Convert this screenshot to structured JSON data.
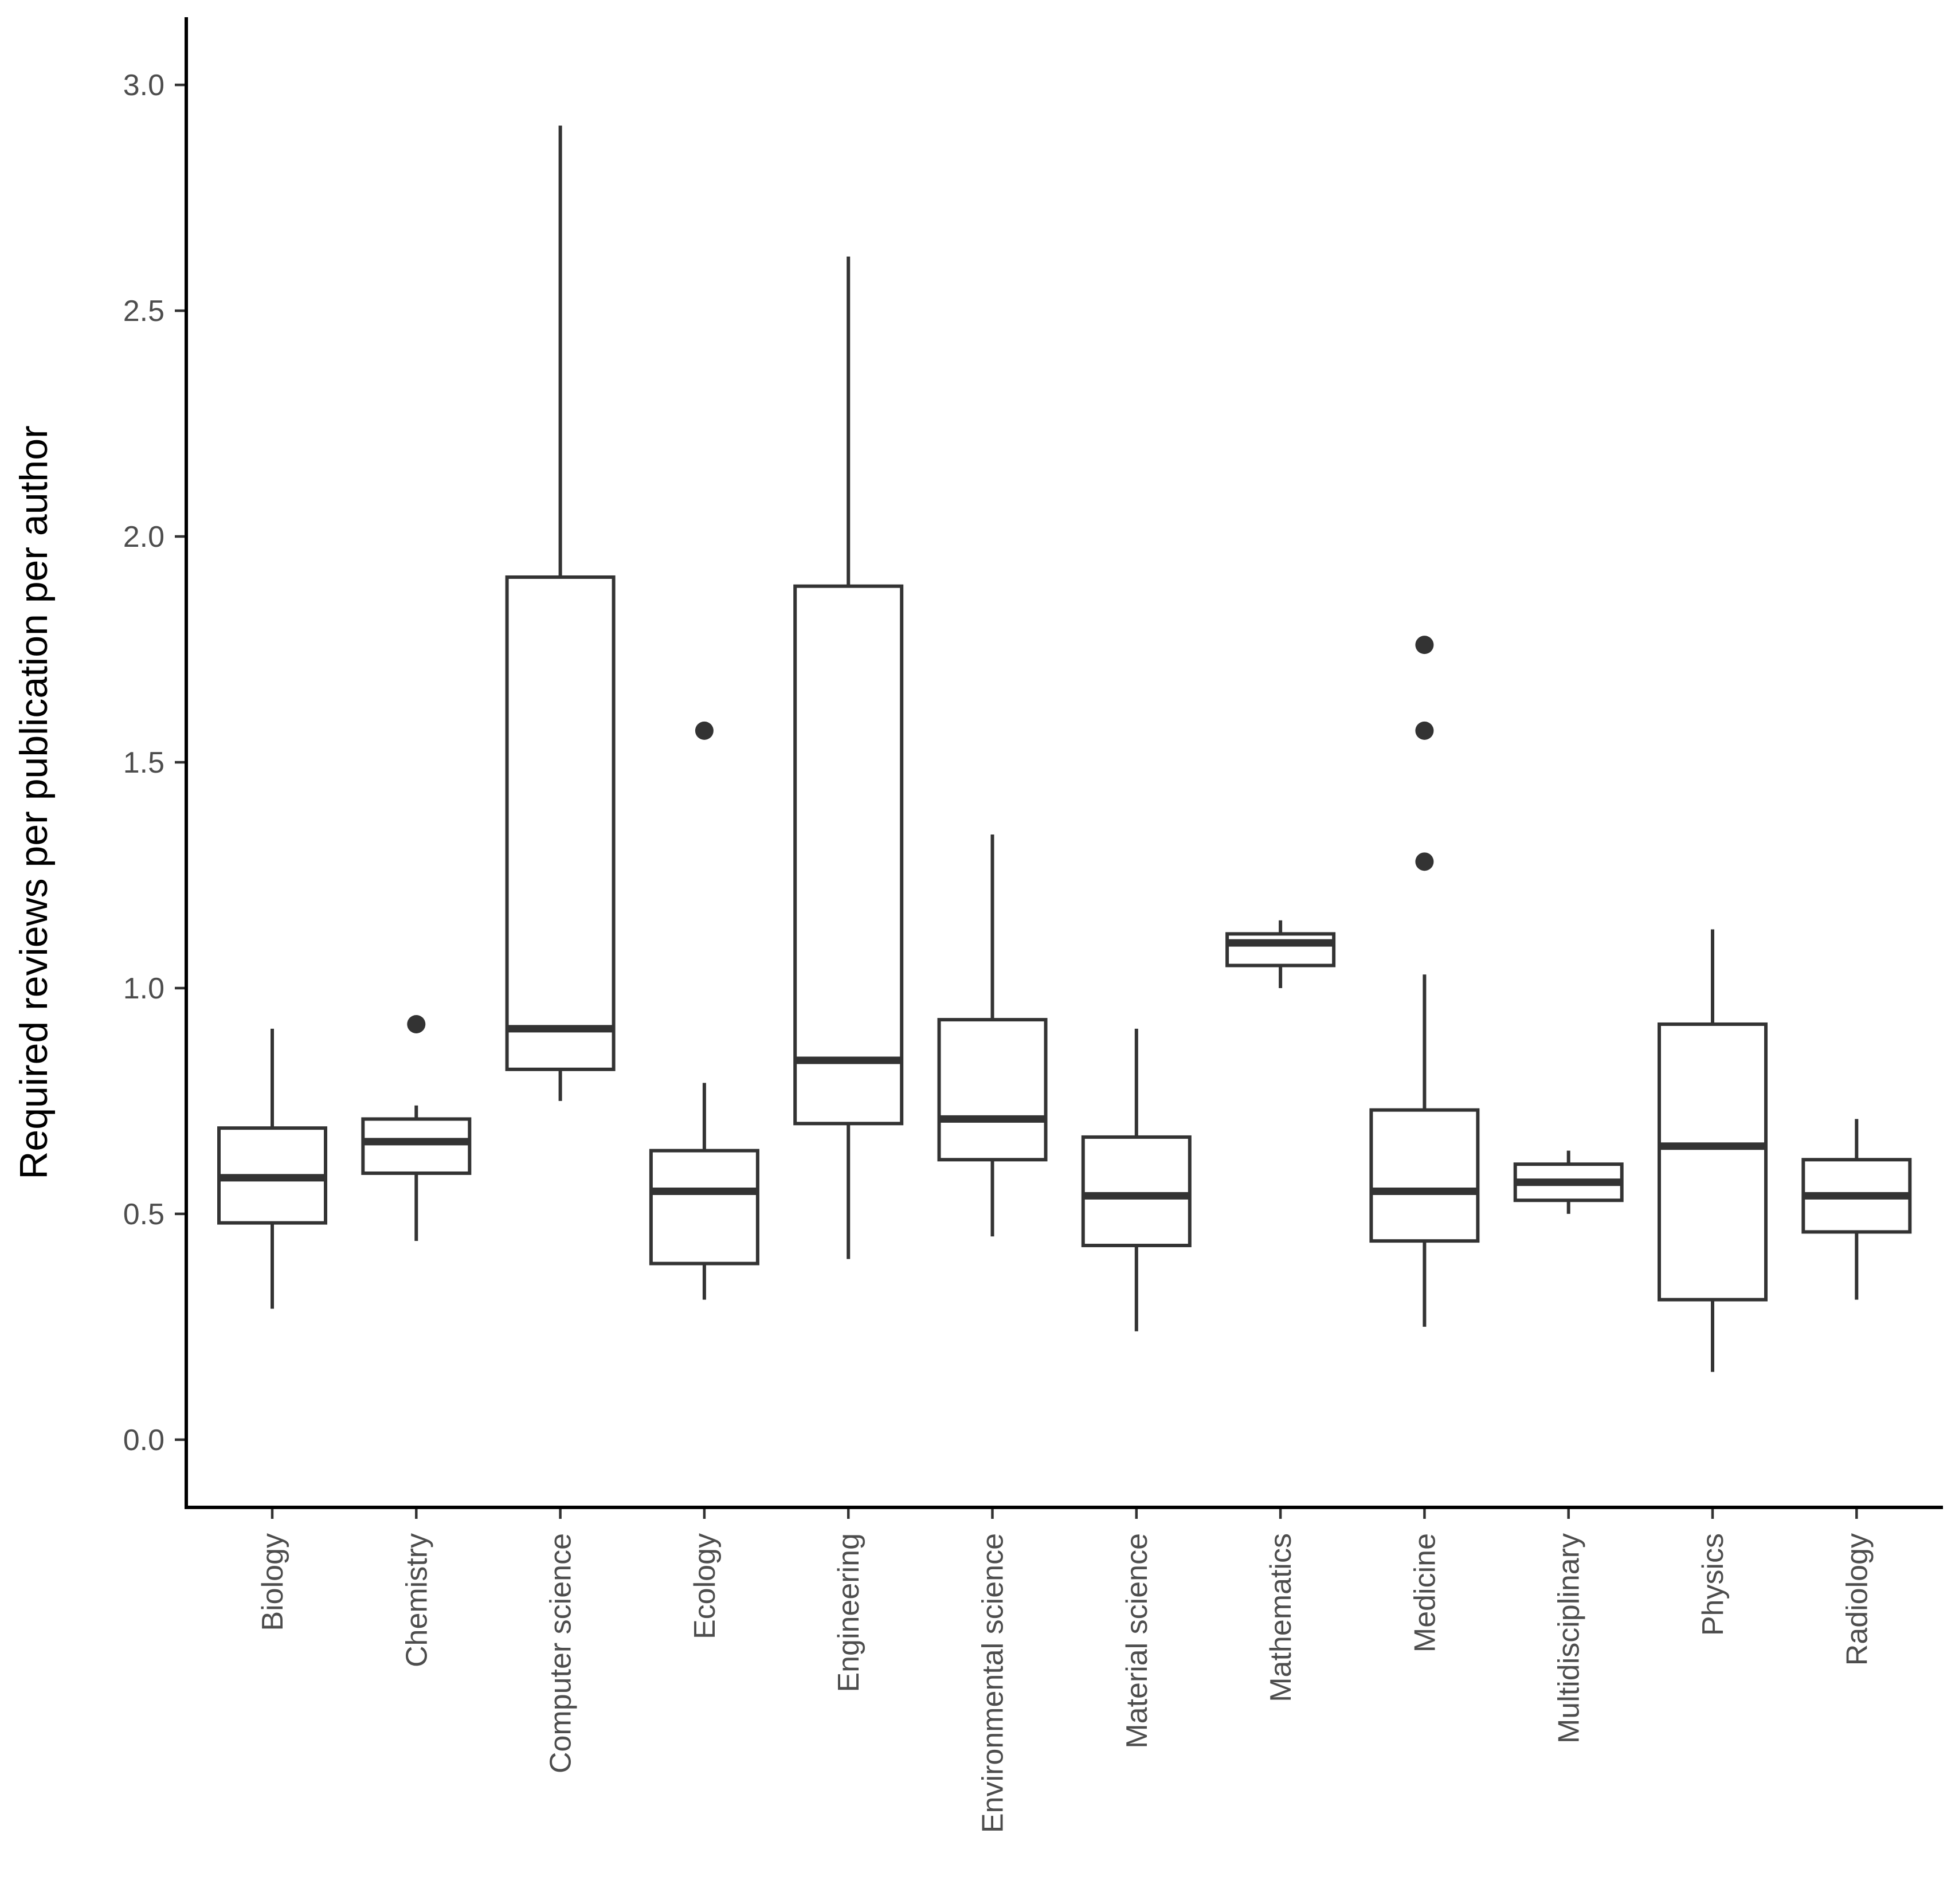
{
  "chart_data": {
    "type": "boxplot",
    "title": "",
    "xlabel": "",
    "ylabel": "Required reviews per publication per author",
    "ylim": [
      -0.15,
      3.15
    ],
    "yticks": [
      0.0,
      0.5,
      1.0,
      1.5,
      2.0,
      2.5,
      3.0
    ],
    "ytick_labels": [
      "0.0",
      "0.5",
      "1.0",
      "1.5",
      "2.0",
      "2.5",
      "3.0"
    ],
    "categories": [
      "Biology",
      "Chemistry",
      "Computer science",
      "Ecology",
      "Engineering",
      "Environmental science",
      "Material science",
      "Mathematics",
      "Medicine",
      "Multidisciplinary",
      "Physics",
      "Radiology"
    ],
    "boxes": [
      {
        "category": "Biology",
        "whisker_low": 0.29,
        "q1": 0.48,
        "median": 0.58,
        "q3": 0.69,
        "whisker_high": 0.91,
        "outliers": []
      },
      {
        "category": "Chemistry",
        "whisker_low": 0.44,
        "q1": 0.59,
        "median": 0.66,
        "q3": 0.71,
        "whisker_high": 0.74,
        "outliers": [
          0.92
        ]
      },
      {
        "category": "Computer science",
        "whisker_low": 0.75,
        "q1": 0.82,
        "median": 0.91,
        "q3": 1.91,
        "whisker_high": 2.91,
        "outliers": []
      },
      {
        "category": "Ecology",
        "whisker_low": 0.31,
        "q1": 0.39,
        "median": 0.55,
        "q3": 0.64,
        "whisker_high": 0.79,
        "outliers": [
          1.57
        ]
      },
      {
        "category": "Engineering",
        "whisker_low": 0.4,
        "q1": 0.7,
        "median": 0.84,
        "q3": 1.89,
        "whisker_high": 2.62,
        "outliers": []
      },
      {
        "category": "Environmental science",
        "whisker_low": 0.45,
        "q1": 0.62,
        "median": 0.71,
        "q3": 0.93,
        "whisker_high": 1.34,
        "outliers": []
      },
      {
        "category": "Material science",
        "whisker_low": 0.24,
        "q1": 0.43,
        "median": 0.54,
        "q3": 0.67,
        "whisker_high": 0.91,
        "outliers": []
      },
      {
        "category": "Mathematics",
        "whisker_low": 1.0,
        "q1": 1.05,
        "median": 1.1,
        "q3": 1.12,
        "whisker_high": 1.15,
        "outliers": []
      },
      {
        "category": "Medicine",
        "whisker_low": 0.25,
        "q1": 0.44,
        "median": 0.55,
        "q3": 0.73,
        "whisker_high": 1.03,
        "outliers": [
          1.28,
          1.57,
          1.76
        ]
      },
      {
        "category": "Multidisciplinary",
        "whisker_low": 0.5,
        "q1": 0.53,
        "median": 0.57,
        "q3": 0.61,
        "whisker_high": 0.64,
        "outliers": []
      },
      {
        "category": "Physics",
        "whisker_low": 0.15,
        "q1": 0.31,
        "median": 0.65,
        "q3": 0.92,
        "whisker_high": 1.13,
        "outliers": []
      },
      {
        "category": "Radiology",
        "whisker_low": 0.31,
        "q1": 0.46,
        "median": 0.54,
        "q3": 0.62,
        "whisker_high": 0.71,
        "outliers": []
      }
    ],
    "grid": false,
    "legend": "none"
  }
}
